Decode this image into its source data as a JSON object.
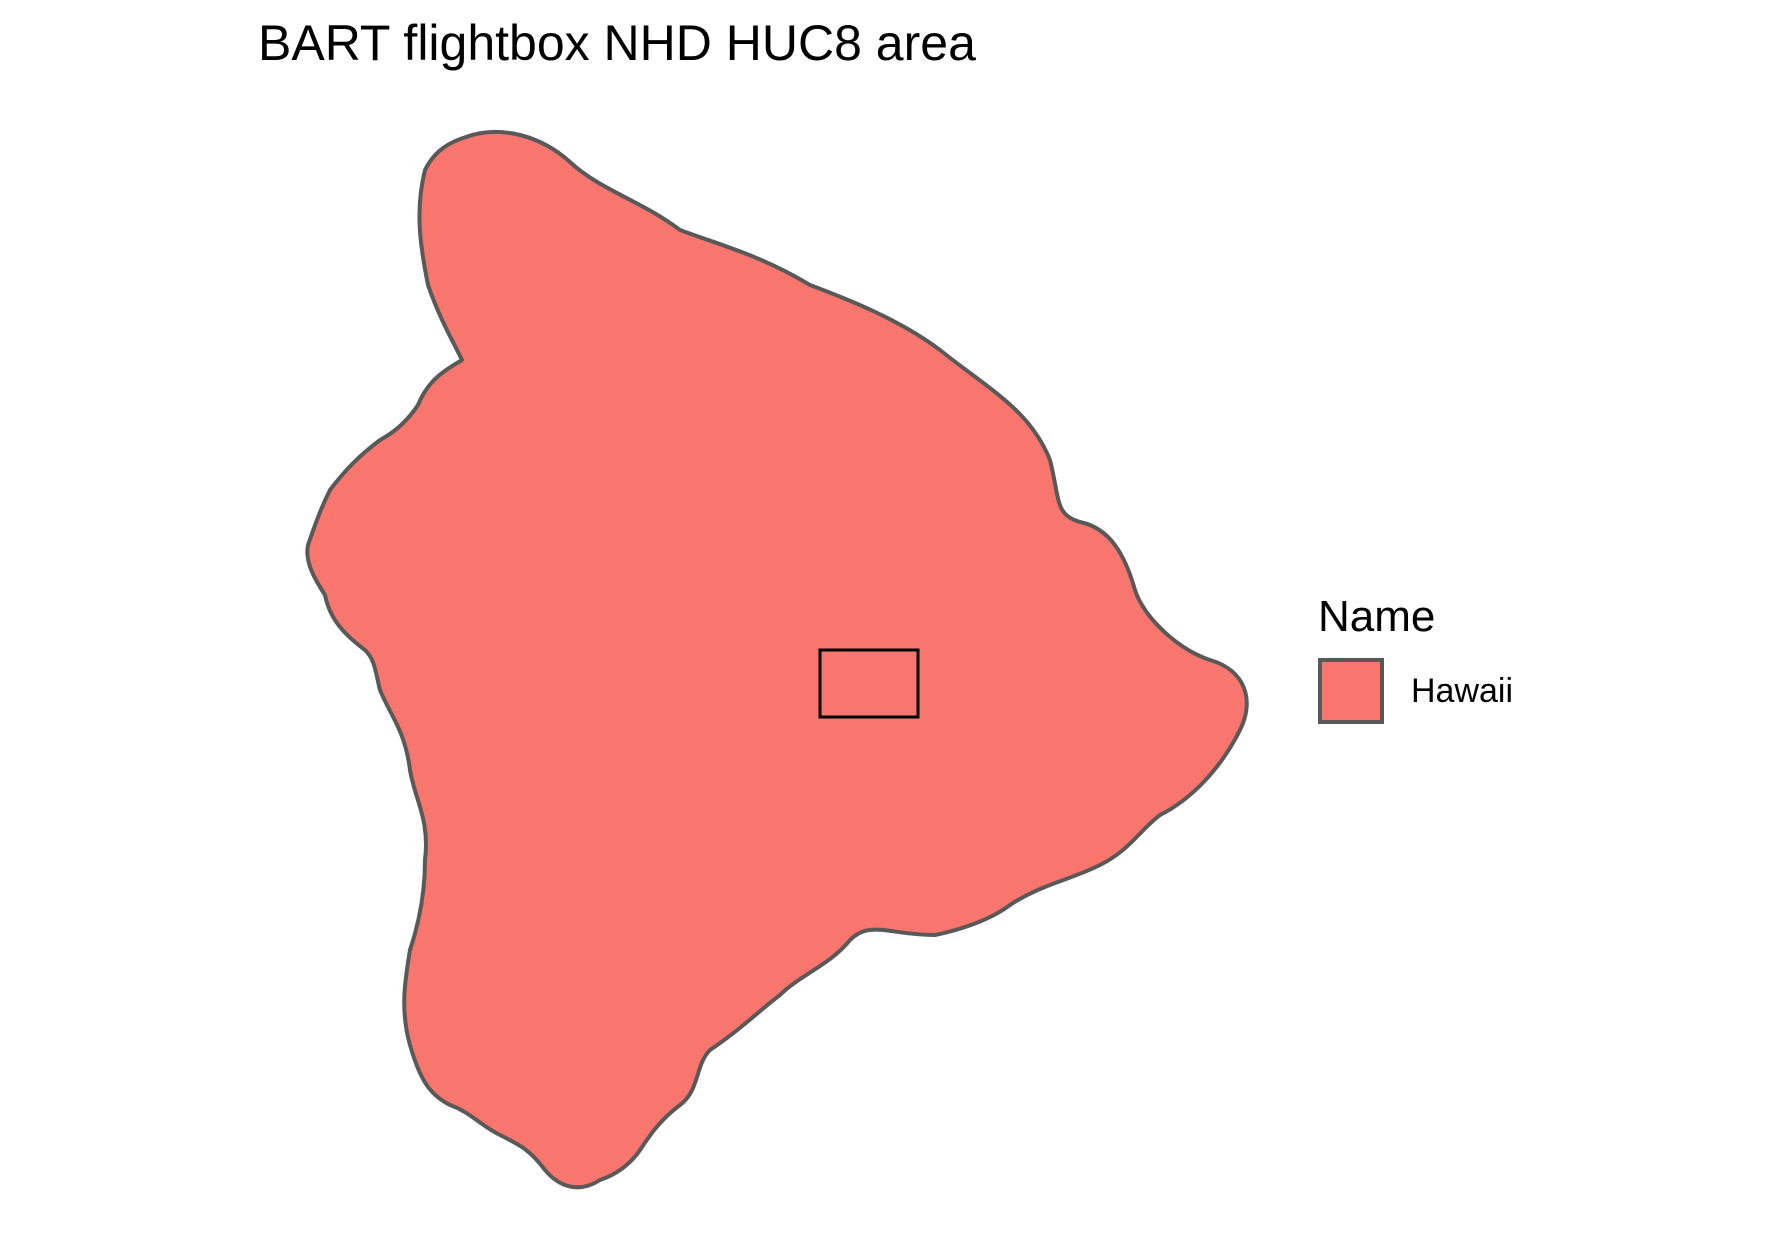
{
  "chart_data": {
    "type": "map",
    "title": "BART flightbox NHD HUC8 area",
    "legend": {
      "title": "Name",
      "entries": [
        {
          "label": "Hawaii",
          "color": "#F8766D"
        }
      ]
    },
    "region": {
      "name": "Hawaii",
      "fill": "#F8766D",
      "outline": "#595959"
    },
    "flightbox": {
      "outline": "#000000",
      "fill": "none"
    },
    "grid": false,
    "axes": false,
    "legend_position": "right"
  }
}
